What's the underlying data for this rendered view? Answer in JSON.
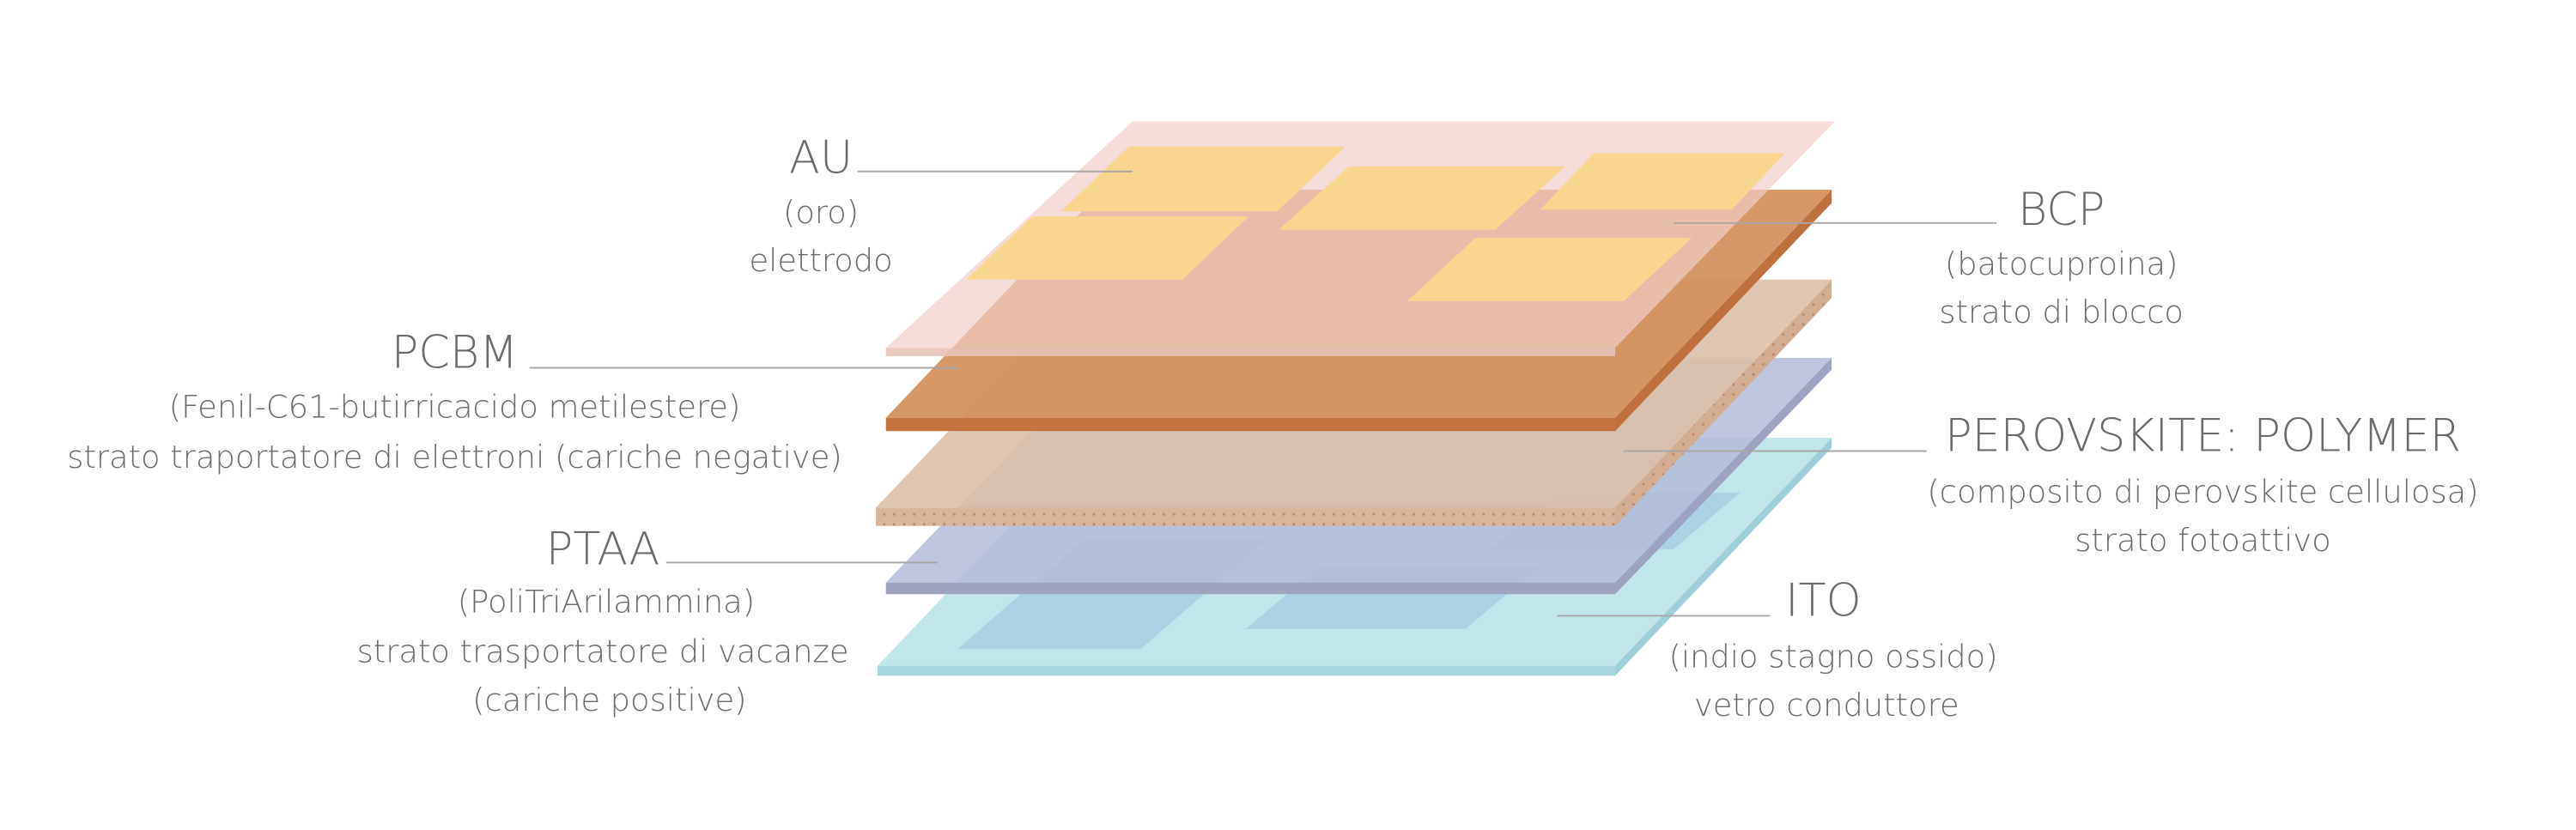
{
  "labels": [
    {
      "name": "AU",
      "lines": [
        "(oro)",
        "elettrodo"
      ]
    },
    {
      "name": "PCBM",
      "lines": [
        "(Fenil-C61-butirricacido metilestere)",
        "strato traportatore di elettroni (cariche negative)"
      ]
    },
    {
      "name": "PTAA",
      "lines": [
        "(PoliTriArilammina)",
        "strato trasportatore di vacanze",
        "(cariche positive)"
      ]
    },
    {
      "name": "BCP",
      "lines": [
        "(batocuproina)",
        "strato di blocco"
      ]
    },
    {
      "name": "PEROVSKITE: POLYMER",
      "lines": [
        "(composito di perovskite cellulosa)",
        "strato fotoattivo"
      ]
    },
    {
      "name": "ITO",
      "lines": [
        "(indio stagno ossido)",
        "vetro conduttore"
      ]
    }
  ]
}
